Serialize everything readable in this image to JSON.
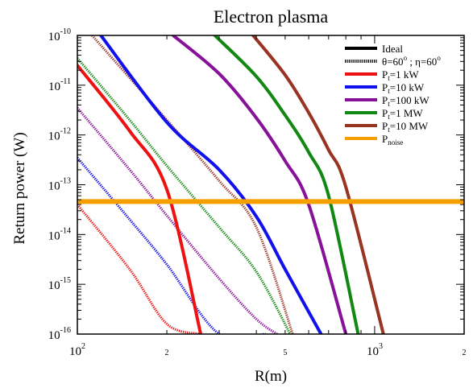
{
  "chart_data": {
    "type": "line",
    "title": "Electron plasma",
    "xlabel": "R(m)",
    "ylabel": "Return power (W)",
    "x_scale": "log",
    "y_scale": "log",
    "xlim": [
      100,
      2000
    ],
    "ylim": [
      1e-16,
      1e-10
    ],
    "grid": false,
    "legend_position": "top-right",
    "x_ticks": [
      {
        "value": 100,
        "base": "10",
        "exp": "2"
      },
      {
        "value": 1000,
        "base": "10",
        "exp": "3"
      }
    ],
    "x_minor_labels": [
      {
        "value": 200,
        "label": "2"
      },
      {
        "value": 500,
        "label": "5"
      },
      {
        "value": 2000,
        "label": "2"
      }
    ],
    "y_ticks": [
      {
        "value": 1e-10,
        "base": "10",
        "exp": "-10"
      },
      {
        "value": 1e-11,
        "base": "10",
        "exp": "-11"
      },
      {
        "value": 1e-12,
        "base": "10",
        "exp": "-12"
      },
      {
        "value": 1e-13,
        "base": "10",
        "exp": "-13"
      },
      {
        "value": 1e-14,
        "base": "10",
        "exp": "-14"
      },
      {
        "value": 1e-15,
        "base": "10",
        "exp": "-15"
      },
      {
        "value": 1e-16,
        "base": "10",
        "exp": "-16"
      }
    ],
    "legend": [
      {
        "id": "ideal",
        "main": "Ideal",
        "sub": "",
        "rest": "",
        "color": "#000000",
        "style": "solid"
      },
      {
        "id": "theta",
        "main": "θ=60",
        "sup1": "o",
        "mid": " ; η=60",
        "sup2": "o",
        "color": "#000000",
        "style": "dotted"
      },
      {
        "id": "p1kw",
        "main": "P",
        "sub": "t",
        "rest": "=1 kW",
        "color": "#ee1111",
        "style": "solid"
      },
      {
        "id": "p10kw",
        "main": "P",
        "sub": "t",
        "rest": "=10 kW",
        "color": "#1111ee",
        "style": "solid"
      },
      {
        "id": "p100kw",
        "main": "P",
        "sub": "t",
        "rest": "=100 kW",
        "color": "#881199",
        "style": "solid"
      },
      {
        "id": "p1mw",
        "main": "P",
        "sub": "t",
        "rest": "=1 MW",
        "color": "#118811",
        "style": "solid"
      },
      {
        "id": "p10mw",
        "main": "P",
        "sub": "t",
        "rest": "=10 MW",
        "color": "#993322",
        "style": "solid"
      },
      {
        "id": "pnoise",
        "main": "P",
        "sub": "noise",
        "rest": "",
        "color": "#f5a000",
        "style": "solid"
      }
    ],
    "series": [
      {
        "name": "Pt=1 kW",
        "variant": "ideal",
        "color": "#ee1111",
        "x": [
          100,
          150,
          200,
          260
        ],
        "y": [
          2.5e-11,
          1.2e-12,
          8e-14,
          1e-16
        ]
      },
      {
        "name": "Pt=10 kW",
        "variant": "ideal",
        "color": "#1111ee",
        "x": [
          120,
          200,
          300,
          400,
          500,
          660
        ],
        "y": [
          1e-10,
          1.8e-12,
          2e-13,
          2.3e-14,
          2e-15,
          1e-16
        ]
      },
      {
        "name": "Pt=100 kW",
        "variant": "ideal",
        "color": "#881199",
        "x": [
          210,
          300,
          400,
          500,
          600,
          800
        ],
        "y": [
          1e-10,
          1.7e-11,
          2.2e-12,
          3e-13,
          4e-14,
          1e-16
        ]
      },
      {
        "name": "Pt=1 MW",
        "variant": "ideal",
        "color": "#118811",
        "x": [
          290,
          400,
          500,
          600,
          700,
          880
        ],
        "y": [
          1e-10,
          1.5e-11,
          2.5e-12,
          4.5e-13,
          6e-14,
          1e-16
        ]
      },
      {
        "name": "Pt=10 MW",
        "variant": "ideal",
        "color": "#993322",
        "x": [
          390,
          500,
          600,
          700,
          800,
          1070
        ],
        "y": [
          1e-10,
          1.6e-11,
          2.8e-12,
          5e-13,
          9e-14,
          1e-16
        ]
      },
      {
        "name": "Pt=1 kW",
        "variant": "theta",
        "color": "#ee1111",
        "x": [
          100,
          150,
          200,
          260
        ],
        "y": [
          4e-14,
          2e-15,
          1.6e-16,
          1e-16
        ]
      },
      {
        "name": "Pt=10 kW",
        "variant": "theta",
        "color": "#1111ee",
        "x": [
          100,
          150,
          200,
          300,
          430
        ],
        "y": [
          3.5e-13,
          2e-14,
          2.5e-15,
          1e-16,
          1e-16
        ]
      },
      {
        "name": "Pt=100 kW",
        "variant": "theta",
        "color": "#881199",
        "x": [
          100,
          150,
          200,
          300,
          400,
          470
        ],
        "y": [
          3.5e-12,
          2e-13,
          2.4e-14,
          1.3e-15,
          2e-16,
          1e-16
        ]
      },
      {
        "name": "Pt=1 MW",
        "variant": "theta",
        "color": "#118811",
        "x": [
          100,
          150,
          200,
          300,
          400,
          520
        ],
        "y": [
          3.5e-11,
          2e-12,
          2.4e-13,
          1.4e-14,
          1.8e-15,
          1e-16
        ]
      },
      {
        "name": "Pt=10 MW",
        "variant": "theta",
        "color": "#993322",
        "x": [
          112,
          150,
          200,
          300,
          400,
          530
        ],
        "y": [
          1e-10,
          1.4e-11,
          2e-12,
          1.2e-13,
          1.4e-14,
          1e-16
        ]
      },
      {
        "name": "Pnoise",
        "variant": "noise",
        "color": "#f5a000",
        "x": [
          100,
          2000
        ],
        "y": [
          4.6e-14,
          4.6e-14
        ]
      }
    ]
  }
}
